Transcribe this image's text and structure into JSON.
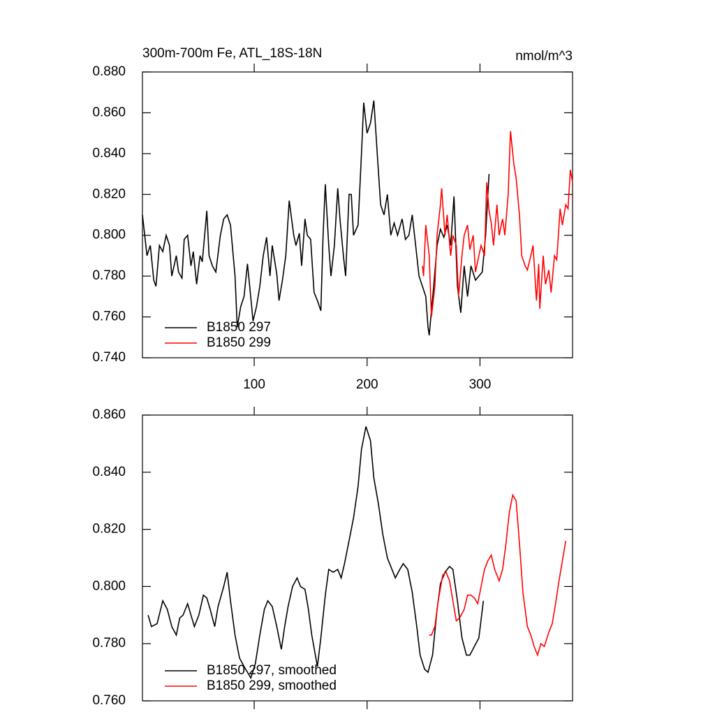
{
  "chart_data": [
    {
      "type": "line",
      "title": "300m-700m Fe, ATL_18S-18N",
      "units_label": "nmol/m^3",
      "xlim": [
        1,
        382
      ],
      "xticks": [
        100,
        200,
        300
      ],
      "show_xtick_labels": true,
      "ylim": [
        0.74,
        0.88
      ],
      "yticks": [
        {
          "value": 0.74,
          "label": "0.740"
        },
        {
          "value": 0.76,
          "label": "0.760"
        },
        {
          "value": 0.78,
          "label": "0.780"
        },
        {
          "value": 0.8,
          "label": "0.800"
        },
        {
          "value": 0.82,
          "label": "0.820"
        },
        {
          "value": 0.84,
          "label": "0.840"
        },
        {
          "value": 0.86,
          "label": "0.860"
        },
        {
          "value": 0.88,
          "label": "0.880"
        }
      ],
      "legend": "lower left",
      "series": [
        {
          "name": "B1850 297",
          "color": "#000000",
          "x": [
            1,
            5,
            8,
            11,
            13,
            16,
            19,
            22,
            25,
            27,
            31,
            33,
            36,
            38,
            41,
            44,
            46,
            49,
            52,
            54,
            58,
            60,
            63,
            66,
            70,
            73,
            76,
            79,
            83,
            85,
            88,
            91,
            94,
            96,
            99,
            102,
            105,
            108,
            111,
            114,
            116,
            120,
            122,
            125,
            128,
            131,
            135,
            137,
            140,
            142,
            145,
            147,
            150,
            153,
            156,
            159,
            161,
            163,
            166,
            168,
            171,
            174,
            176,
            179,
            181,
            184,
            186,
            188,
            192,
            195,
            197,
            200,
            203,
            206,
            209,
            212,
            215,
            218,
            221,
            224,
            227,
            231,
            234,
            237,
            240,
            243,
            246,
            249,
            252,
            254,
            255,
            259,
            262,
            265,
            268,
            271,
            274,
            277,
            280,
            283,
            286,
            289,
            292,
            296,
            299,
            302,
            305,
            308
          ],
          "values": [
            0.81,
            0.79,
            0.795,
            0.778,
            0.775,
            0.795,
            0.792,
            0.8,
            0.795,
            0.78,
            0.79,
            0.782,
            0.779,
            0.798,
            0.8,
            0.785,
            0.792,
            0.776,
            0.79,
            0.787,
            0.812,
            0.79,
            0.785,
            0.782,
            0.8,
            0.808,
            0.81,
            0.805,
            0.78,
            0.755,
            0.765,
            0.77,
            0.786,
            0.775,
            0.758,
            0.765,
            0.775,
            0.79,
            0.799,
            0.78,
            0.795,
            0.781,
            0.768,
            0.778,
            0.79,
            0.817,
            0.8,
            0.795,
            0.801,
            0.785,
            0.808,
            0.8,
            0.798,
            0.772,
            0.768,
            0.763,
            0.8,
            0.825,
            0.795,
            0.78,
            0.795,
            0.823,
            0.808,
            0.79,
            0.78,
            0.82,
            0.82,
            0.8,
            0.805,
            0.84,
            0.865,
            0.85,
            0.855,
            0.866,
            0.84,
            0.815,
            0.81,
            0.82,
            0.8,
            0.806,
            0.8,
            0.808,
            0.798,
            0.8,
            0.81,
            0.795,
            0.78,
            0.775,
            0.77,
            0.755,
            0.751,
            0.775,
            0.795,
            0.803,
            0.799,
            0.805,
            0.795,
            0.819,
            0.775,
            0.762,
            0.785,
            0.77,
            0.785,
            0.778,
            0.78,
            0.782,
            0.8,
            0.83
          ]
        },
        {
          "name": "B1850 299",
          "color": "#ff0000",
          "x": [
            249,
            250,
            252,
            255,
            257,
            260,
            262,
            265,
            266,
            269,
            271,
            274,
            276,
            279,
            281,
            284,
            286,
            289,
            291,
            294,
            296,
            299,
            301,
            304,
            306,
            308,
            310,
            312,
            315,
            317,
            320,
            322,
            325,
            327,
            330,
            332,
            335,
            337,
            340,
            342,
            345,
            347,
            350,
            352,
            353,
            356,
            358,
            361,
            363,
            366,
            368,
            371,
            373,
            376,
            378,
            380,
            382
          ],
          "values": [
            0.785,
            0.78,
            0.805,
            0.79,
            0.76,
            0.775,
            0.8,
            0.815,
            0.823,
            0.8,
            0.81,
            0.79,
            0.8,
            0.795,
            0.77,
            0.79,
            0.8,
            0.805,
            0.793,
            0.8,
            0.782,
            0.79,
            0.795,
            0.79,
            0.826,
            0.812,
            0.806,
            0.795,
            0.815,
            0.8,
            0.808,
            0.8,
            0.82,
            0.851,
            0.835,
            0.828,
            0.81,
            0.79,
            0.785,
            0.783,
            0.79,
            0.795,
            0.768,
            0.786,
            0.764,
            0.79,
            0.776,
            0.783,
            0.772,
            0.79,
            0.788,
            0.813,
            0.805,
            0.815,
            0.813,
            0.832,
            0.826
          ]
        }
      ]
    },
    {
      "type": "line",
      "xlim": [
        1,
        382
      ],
      "xticks": [
        100,
        200,
        300
      ],
      "show_xtick_labels": false,
      "ylim": [
        0.76,
        0.86
      ],
      "yticks": [
        {
          "value": 0.76,
          "label": "0.760"
        },
        {
          "value": 0.78,
          "label": "0.780"
        },
        {
          "value": 0.8,
          "label": "0.800"
        },
        {
          "value": 0.82,
          "label": "0.820"
        },
        {
          "value": 0.84,
          "label": "0.840"
        },
        {
          "value": 0.86,
          "label": "0.860"
        }
      ],
      "legend": "lower left",
      "series": [
        {
          "name": "B1850 297, smoothed",
          "color": "#000000",
          "x": [
            6,
            9,
            14,
            19,
            23,
            27,
            31,
            34,
            37,
            41,
            44,
            47,
            51,
            55,
            58,
            61,
            65,
            68,
            73,
            76,
            79,
            83,
            87,
            91,
            94,
            97,
            101,
            105,
            109,
            112,
            116,
            120,
            124,
            127,
            130,
            134,
            138,
            141,
            145,
            148,
            151,
            156,
            159,
            163,
            166,
            170,
            174,
            177,
            180,
            184,
            188,
            192,
            195,
            199,
            203,
            206,
            210,
            214,
            218,
            221,
            225,
            229,
            232,
            236,
            240,
            244,
            247,
            251,
            254,
            258,
            262,
            265,
            269,
            273,
            276,
            280,
            284,
            288,
            291,
            295,
            299,
            303
          ],
          "values": [
            0.79,
            0.786,
            0.787,
            0.795,
            0.792,
            0.786,
            0.783,
            0.789,
            0.79,
            0.794,
            0.79,
            0.786,
            0.79,
            0.797,
            0.796,
            0.792,
            0.786,
            0.793,
            0.8,
            0.805,
            0.795,
            0.783,
            0.775,
            0.772,
            0.77,
            0.768,
            0.773,
            0.783,
            0.792,
            0.795,
            0.793,
            0.786,
            0.778,
            0.786,
            0.793,
            0.8,
            0.803,
            0.8,
            0.799,
            0.792,
            0.783,
            0.772,
            0.782,
            0.797,
            0.806,
            0.805,
            0.806,
            0.803,
            0.808,
            0.816,
            0.824,
            0.835,
            0.848,
            0.856,
            0.851,
            0.838,
            0.829,
            0.818,
            0.81,
            0.807,
            0.803,
            0.806,
            0.808,
            0.806,
            0.798,
            0.786,
            0.776,
            0.771,
            0.77,
            0.776,
            0.792,
            0.801,
            0.805,
            0.807,
            0.806,
            0.795,
            0.782,
            0.776,
            0.776,
            0.779,
            0.782,
            0.795
          ]
        },
        {
          "name": "B1850 299, smoothed",
          "color": "#ff0000",
          "x": [
            255,
            257,
            260,
            263,
            267,
            270,
            273,
            276,
            279,
            282,
            286,
            289,
            292,
            295,
            298,
            301,
            304,
            307,
            310,
            313,
            317,
            320,
            323,
            326,
            329,
            332,
            335,
            338,
            342,
            345,
            348,
            351,
            354,
            357,
            361,
            364,
            367,
            370,
            373,
            376
          ],
          "values": [
            0.783,
            0.783,
            0.786,
            0.795,
            0.804,
            0.805,
            0.802,
            0.795,
            0.788,
            0.789,
            0.792,
            0.797,
            0.797,
            0.796,
            0.794,
            0.8,
            0.806,
            0.809,
            0.811,
            0.806,
            0.802,
            0.806,
            0.815,
            0.826,
            0.832,
            0.83,
            0.815,
            0.798,
            0.786,
            0.783,
            0.779,
            0.776,
            0.78,
            0.779,
            0.784,
            0.787,
            0.794,
            0.802,
            0.809,
            0.816
          ]
        }
      ]
    }
  ]
}
